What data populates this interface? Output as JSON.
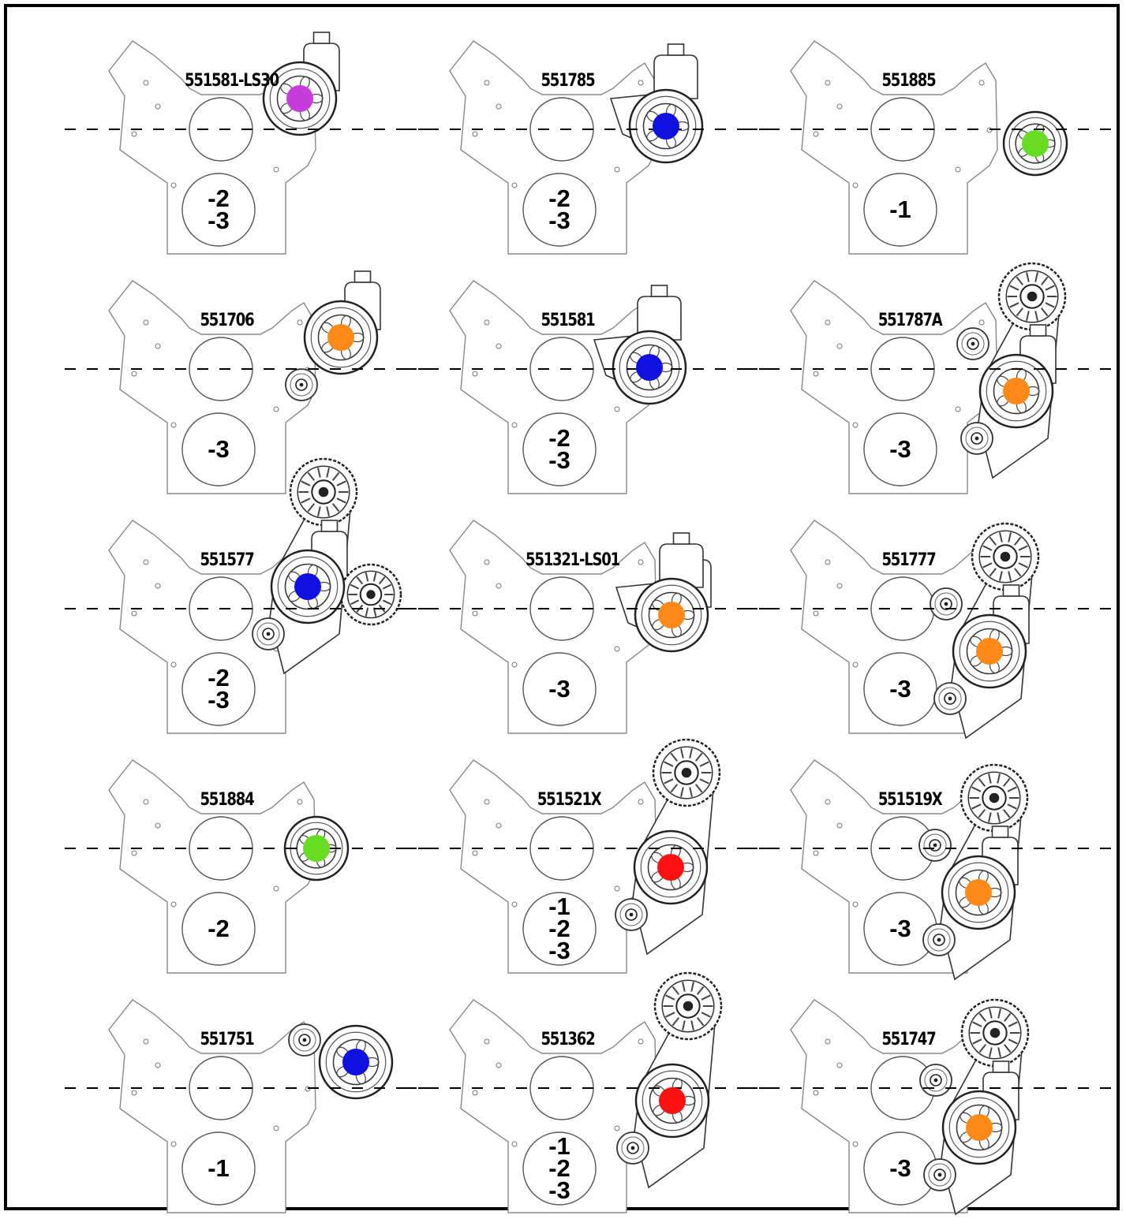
{
  "panels": [
    {
      "part": "551581-LS30",
      "codes": [
        "-2",
        "-3"
      ],
      "dot_color": "#c83cdc",
      "accessory": "pump-reservoir-top"
    },
    {
      "part": "551785",
      "codes": [
        "-2",
        "-3"
      ],
      "dot_color": "#1010e0",
      "accessory": "pump-pulley-bracket"
    },
    {
      "part": "551885",
      "codes": [
        "-1"
      ],
      "dot_color": "#66dd22",
      "accessory": "compact-pump"
    },
    {
      "part": "551706",
      "codes": [
        "-3"
      ],
      "dot_color": "#ff8a1a",
      "accessory": "pump-idler"
    },
    {
      "part": "551581",
      "codes": [
        "-2",
        "-3"
      ],
      "dot_color": "#1010e0",
      "accessory": "pump-pulley-bracket"
    },
    {
      "part": "551787A",
      "codes": [
        "-3"
      ],
      "dot_color": "#ff8a1a",
      "accessory": "alternator-pump-idlers"
    },
    {
      "part": "551577",
      "codes": [
        "-2",
        "-3"
      ],
      "dot_color": "#1010e0",
      "accessory": "pump-alternator-idler"
    },
    {
      "part": "551321-LS01",
      "codes": [
        "-3"
      ],
      "dot_color": "#ff8a1a",
      "accessory": "pump-bracket"
    },
    {
      "part": "551777",
      "codes": [
        "-3"
      ],
      "dot_color": "#ff8a1a",
      "accessory": "alternator-pump-idlers"
    },
    {
      "part": "551884",
      "codes": [
        "-2"
      ],
      "dot_color": "#66dd22",
      "accessory": "compact-pump"
    },
    {
      "part": "551521X",
      "codes": [
        "-1",
        "-2",
        "-3"
      ],
      "dot_color": "#ff1111",
      "accessory": "alternator-bracket-pump-idler"
    },
    {
      "part": "551519X",
      "codes": [
        "-3"
      ],
      "dot_color": "#ff8a1a",
      "accessory": "alternator-pump-idlers"
    },
    {
      "part": "551751",
      "codes": [
        "-1"
      ],
      "dot_color": "#1010e0",
      "accessory": "pump-idler-left"
    },
    {
      "part": "551362",
      "codes": [
        "-1",
        "-2",
        "-3"
      ],
      "dot_color": "#ff1111",
      "accessory": "alternator-bracket-pump-idler"
    },
    {
      "part": "551747",
      "codes": [
        "-3"
      ],
      "dot_color": "#ff8a1a",
      "accessory": "alternator-pump-idlers"
    }
  ]
}
